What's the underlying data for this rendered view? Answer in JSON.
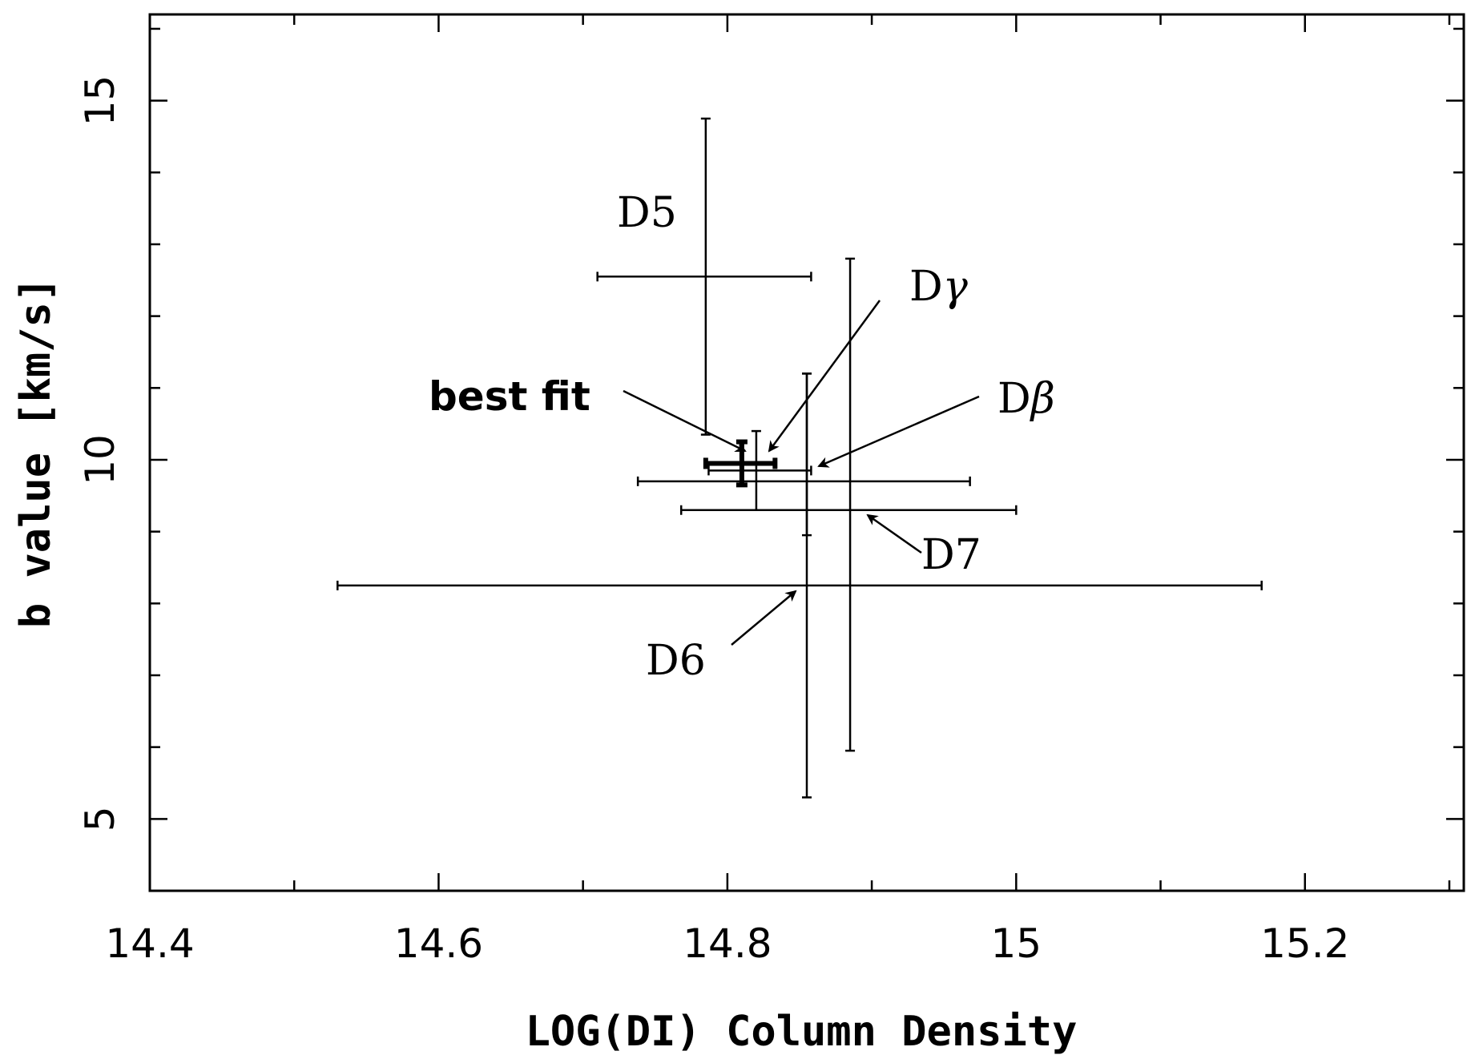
{
  "chart_data": {
    "type": "scatter",
    "title": "",
    "xlabel": "LOG(DI) Column Density",
    "ylabel": "b value [km/s]",
    "xlim": [
      14.4,
      15.31
    ],
    "ylim": [
      4.0,
      16.2
    ],
    "x_ticks": [
      {
        "value": 14.4,
        "label": "14.4"
      },
      {
        "value": 14.6,
        "label": "14.6"
      },
      {
        "value": 14.8,
        "label": "14.8"
      },
      {
        "value": 15.0,
        "label": "15"
      },
      {
        "value": 15.2,
        "label": "15.2"
      }
    ],
    "y_ticks": [
      {
        "value": 5,
        "label": "5"
      },
      {
        "value": 10,
        "label": "10"
      },
      {
        "value": 15,
        "label": "15"
      }
    ],
    "x_minor_step": 0.1,
    "y_minor_step": 1,
    "grid": false,
    "points": [
      {
        "label": "D5",
        "x": 14.785,
        "y": 12.55,
        "xlo": 14.71,
        "xhi": 14.858,
        "ylo": 10.35,
        "yhi": 14.75,
        "bold": false
      },
      {
        "label": "Dγ",
        "x": 14.82,
        "y": 9.85,
        "xlo": 14.787,
        "xhi": 14.858,
        "ylo": 9.3,
        "yhi": 10.4,
        "bold": false
      },
      {
        "label": "Dβ",
        "x": 14.855,
        "y": 9.7,
        "xlo": 14.738,
        "xhi": 14.968,
        "ylo": 8.95,
        "yhi": 11.2,
        "bold": false
      },
      {
        "label": "D7",
        "x": 14.885,
        "y": 9.3,
        "xlo": 14.768,
        "xhi": 15.0,
        "ylo": 5.95,
        "yhi": 12.8,
        "bold": false
      },
      {
        "label": "D6",
        "x": 14.855,
        "y": 8.25,
        "xlo": 14.53,
        "xhi": 15.17,
        "ylo": 5.3,
        "yhi": 11.2,
        "bold": false
      },
      {
        "label": "best fit",
        "x": 14.81,
        "y": 9.95,
        "xlo": 14.785,
        "xhi": 14.833,
        "ylo": 9.65,
        "yhi": 10.25,
        "bold": true
      }
    ]
  },
  "annotations": [
    {
      "id": "D5",
      "text": "D5"
    },
    {
      "id": "Dgamma",
      "text": "D",
      "greek": "γ"
    },
    {
      "id": "Dbeta",
      "text": "D",
      "greek": "β"
    },
    {
      "id": "D7",
      "text": "D7"
    },
    {
      "id": "D6",
      "text": "D6"
    },
    {
      "id": "bestfit",
      "text": "best fit"
    }
  ]
}
